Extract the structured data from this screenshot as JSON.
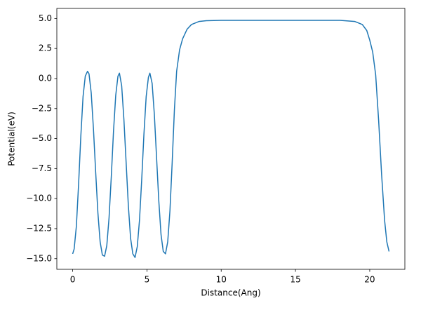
{
  "chart_data": {
    "type": "line",
    "x_label": "Distance(Ang)",
    "y_label": "Potential(eV)",
    "xlim": [
      -1.065,
      22.365
    ],
    "ylim": [
      -15.89,
      5.84
    ],
    "xticks": [
      0,
      5,
      10,
      15,
      20
    ],
    "yticks": [
      {
        "value": 5.0,
        "label": "5.0"
      },
      {
        "value": 2.5,
        "label": "2.5"
      },
      {
        "value": 0.0,
        "label": "0.0"
      },
      {
        "value": -2.5,
        "label": "−2.5"
      },
      {
        "value": -5.0,
        "label": "−5.0"
      },
      {
        "value": -7.5,
        "label": "−7.5"
      },
      {
        "value": -10.0,
        "label": "−10.0"
      },
      {
        "value": -12.5,
        "label": "−12.5"
      },
      {
        "value": -15.0,
        "label": "−15.0"
      }
    ],
    "x": [
      0,
      0.1,
      0.25,
      0.4,
      0.55,
      0.7,
      0.85,
      1.0,
      1.1,
      1.25,
      1.4,
      1.55,
      1.7,
      1.85,
      2.0,
      2.15,
      2.3,
      2.45,
      2.6,
      2.75,
      2.9,
      3.05,
      3.15,
      3.3,
      3.45,
      3.6,
      3.75,
      3.9,
      4.05,
      4.2,
      4.35,
      4.5,
      4.65,
      4.8,
      4.95,
      5.1,
      5.2,
      5.35,
      5.5,
      5.65,
      5.8,
      5.95,
      6.1,
      6.25,
      6.4,
      6.55,
      6.7,
      6.85,
      7.0,
      7.2,
      7.4,
      7.7,
      8.0,
      8.5,
      9.0,
      10,
      12,
      15,
      18,
      19,
      19.5,
      19.8,
      20.0,
      20.2,
      20.4,
      20.6,
      20.8,
      21.0,
      21.15,
      21.3
    ],
    "series": [
      {
        "color": "#1f77b4",
        "values": [
          -14.6,
          -14.2,
          -12.3,
          -8.8,
          -4.8,
          -1.5,
          0.2,
          0.6,
          0.4,
          -1.2,
          -4.2,
          -7.8,
          -11.2,
          -13.6,
          -14.7,
          -14.8,
          -13.9,
          -11.6,
          -8.2,
          -4.4,
          -1.4,
          0.2,
          0.45,
          -0.6,
          -3.4,
          -7.0,
          -10.6,
          -13.3,
          -14.6,
          -14.9,
          -14.0,
          -11.8,
          -8.4,
          -4.6,
          -1.5,
          0.1,
          0.45,
          -0.4,
          -3.0,
          -6.6,
          -10.2,
          -13.0,
          -14.4,
          -14.6,
          -13.6,
          -11.0,
          -7.0,
          -2.6,
          0.6,
          2.4,
          3.3,
          4.1,
          4.5,
          4.75,
          4.82,
          4.85,
          4.85,
          4.85,
          4.85,
          4.75,
          4.5,
          4.0,
          3.2,
          2.2,
          0.3,
          -3.5,
          -8.0,
          -11.8,
          -13.6,
          -14.4
        ]
      }
    ]
  }
}
